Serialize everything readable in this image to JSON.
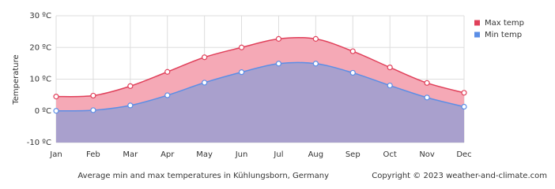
{
  "chart_data": {
    "type": "line",
    "y_label": "Temperature",
    "caption": "Average min and max temperatures in Kühlungsborn, Germany",
    "copyright": "Copyright © 2023  weather-and-climate.com",
    "categories": [
      "Jan",
      "Feb",
      "Mar",
      "Apr",
      "May",
      "Jun",
      "Jul",
      "Aug",
      "Sep",
      "Oct",
      "Nov",
      "Dec"
    ],
    "series": [
      {
        "name": "Max temp",
        "color": "#e0405a",
        "fill": "#f5a9b6",
        "values": [
          4.5,
          4.8,
          7.8,
          12.3,
          16.9,
          20,
          22.7,
          22.7,
          18.8,
          13.7,
          8.8,
          5.7
        ]
      },
      {
        "name": "Min temp",
        "color": "#5b8ee6",
        "fill": "#a9a0cd",
        "values": [
          0,
          0.2,
          1.7,
          4.9,
          8.9,
          12.2,
          14.9,
          14.9,
          12,
          8,
          4.2,
          1.3
        ]
      }
    ],
    "ylim": [
      -10,
      30
    ],
    "yticks": [
      {
        "value": -10,
        "label": "-10 ºC"
      },
      {
        "value": 0,
        "label": "0 ºC"
      },
      {
        "value": 10,
        "label": "10 ºC"
      },
      {
        "value": 20,
        "label": "20 ºC"
      },
      {
        "value": 30,
        "label": "30 ºC"
      }
    ],
    "grid": true
  }
}
